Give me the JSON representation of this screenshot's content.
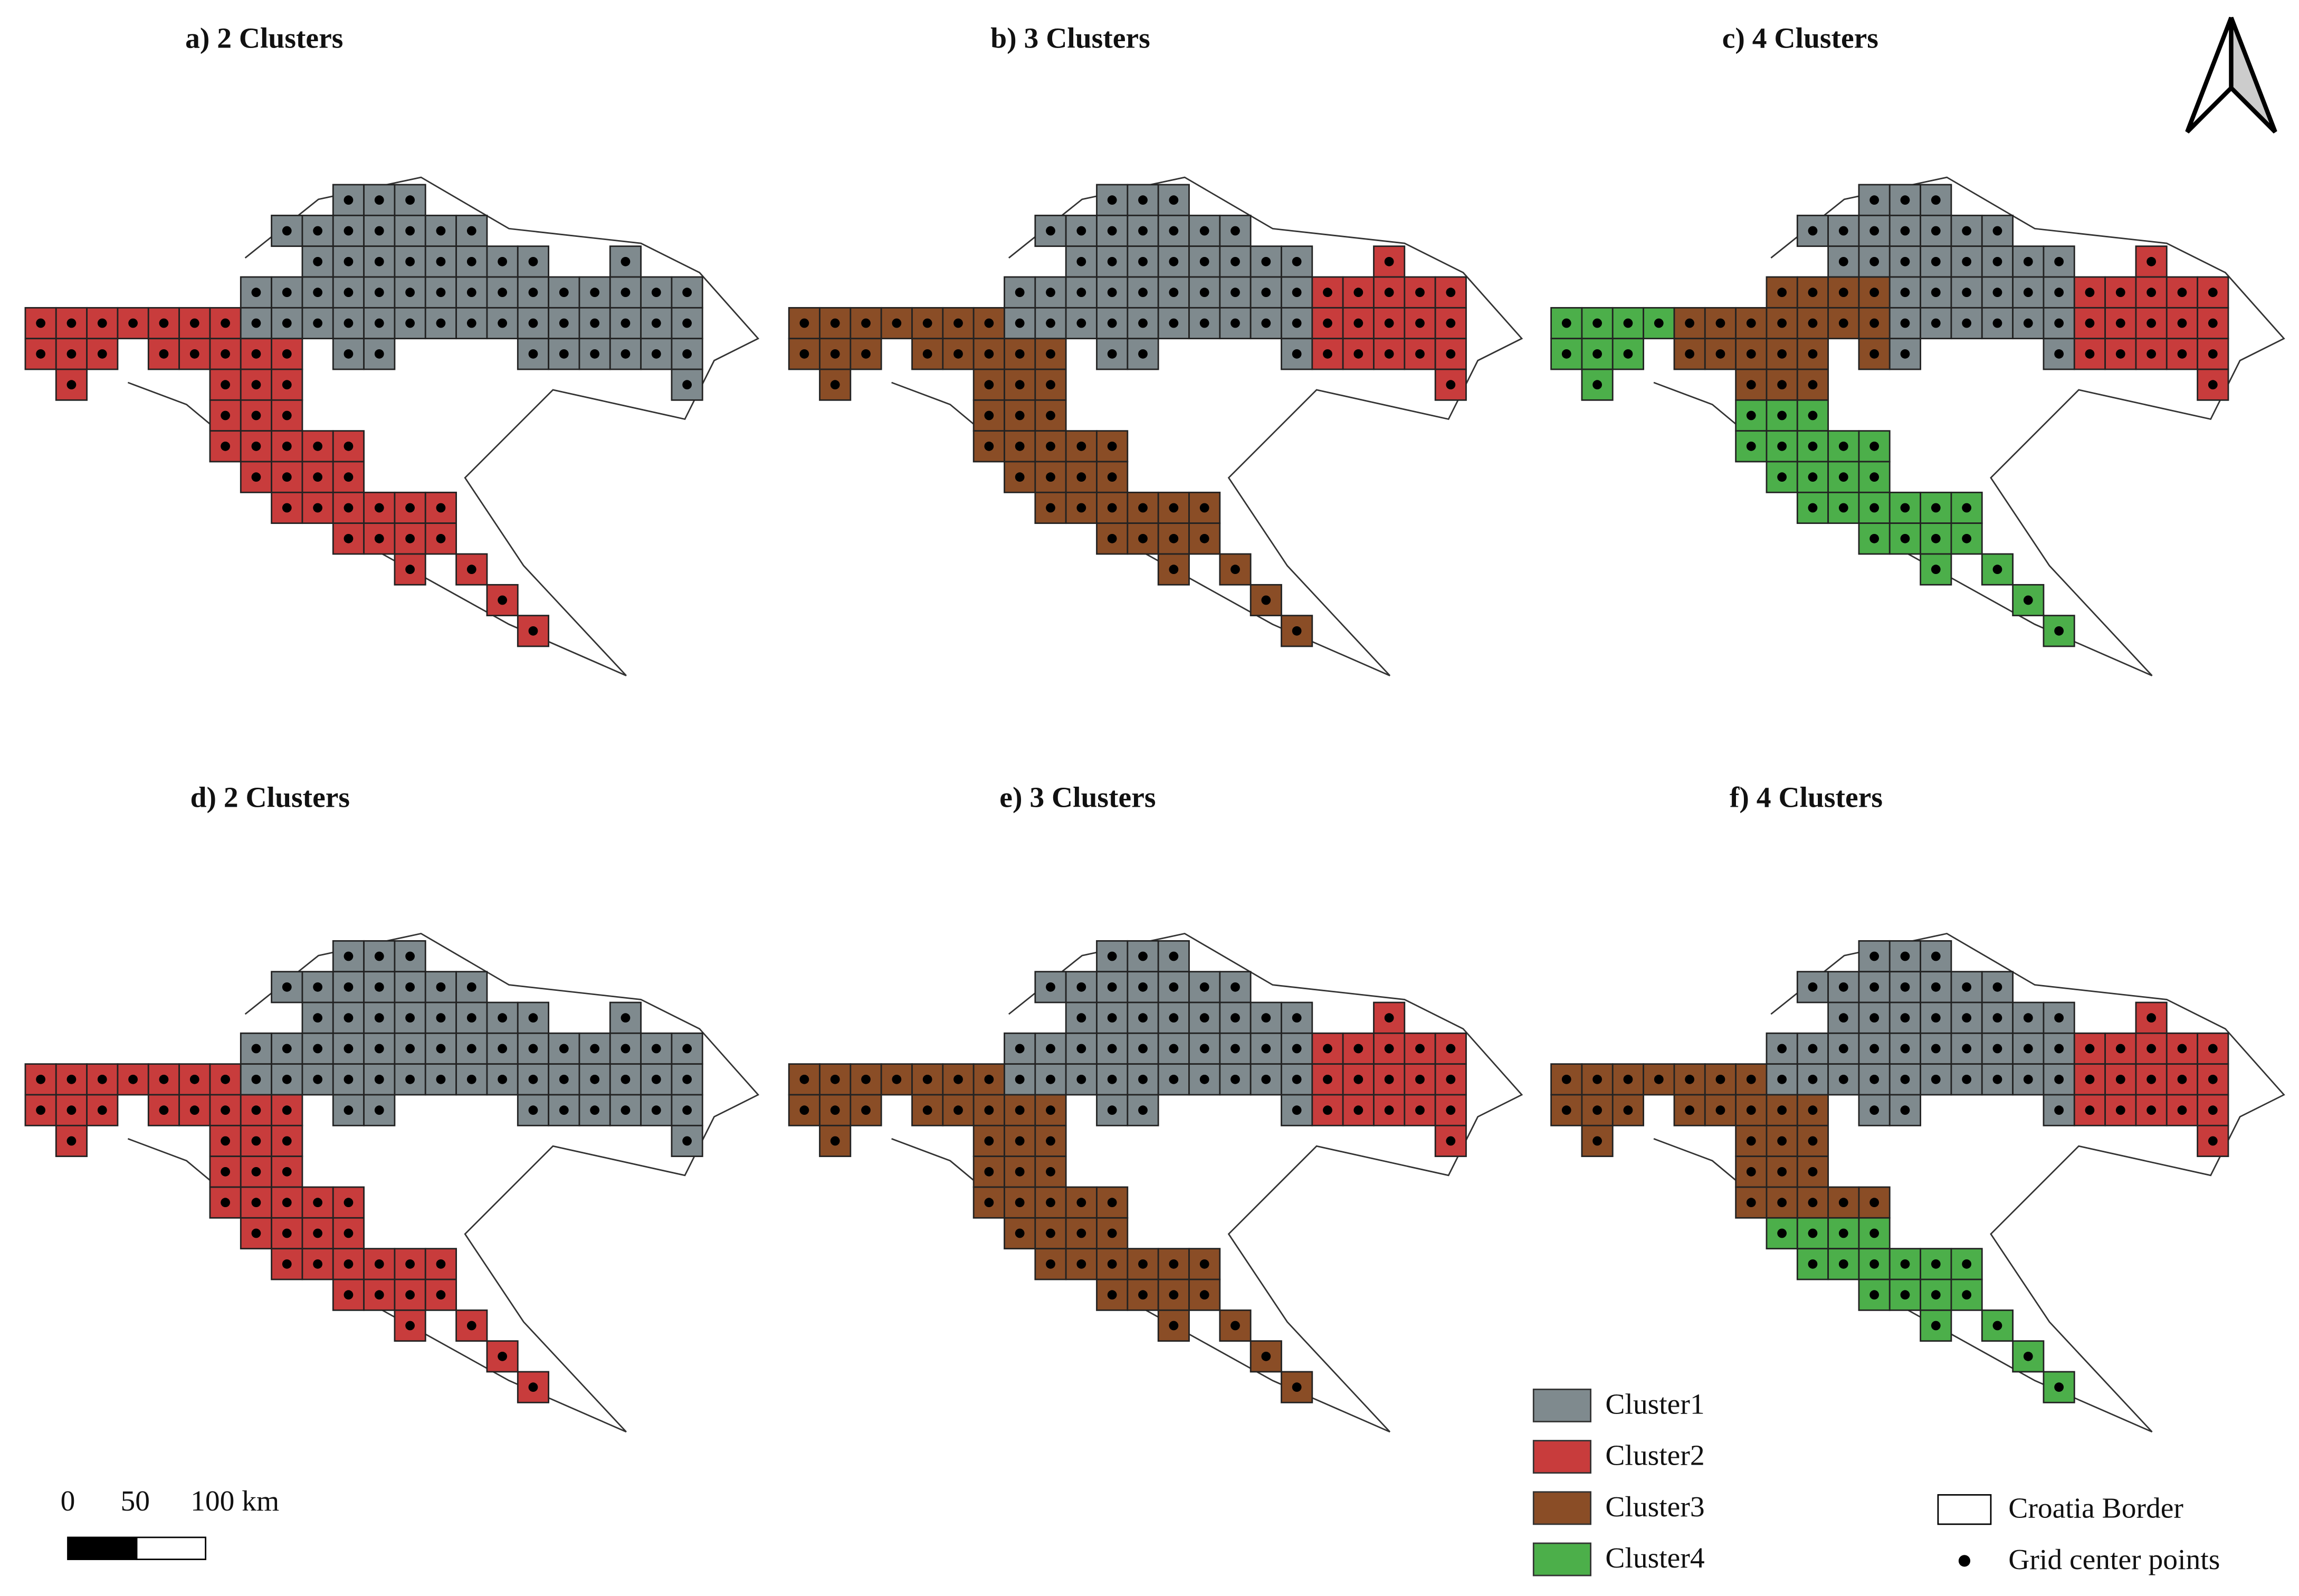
{
  "panels": [
    {
      "title": "a) 2 Clusters"
    },
    {
      "title": "b)  3 Clusters"
    },
    {
      "title": "c) 4 Clusters"
    },
    {
      "title": "d) 2 Clusters"
    },
    {
      "title": "e)  3 Clusters"
    },
    {
      "title": "f) 4 Clusters"
    }
  ],
  "legend": {
    "items": [
      {
        "label": "Cluster1",
        "color": "#7f8a8e"
      },
      {
        "label": "Cluster2",
        "color": "#c83c3c"
      },
      {
        "label": "Cluster3",
        "color": "#8a4d26"
      },
      {
        "label": "Cluster4",
        "color": "#4caf4a"
      }
    ],
    "border": "Croatia Border",
    "points": "Grid center points"
  },
  "scale_bar": {
    "labels": [
      "0",
      "50",
      "100 km"
    ]
  }
}
